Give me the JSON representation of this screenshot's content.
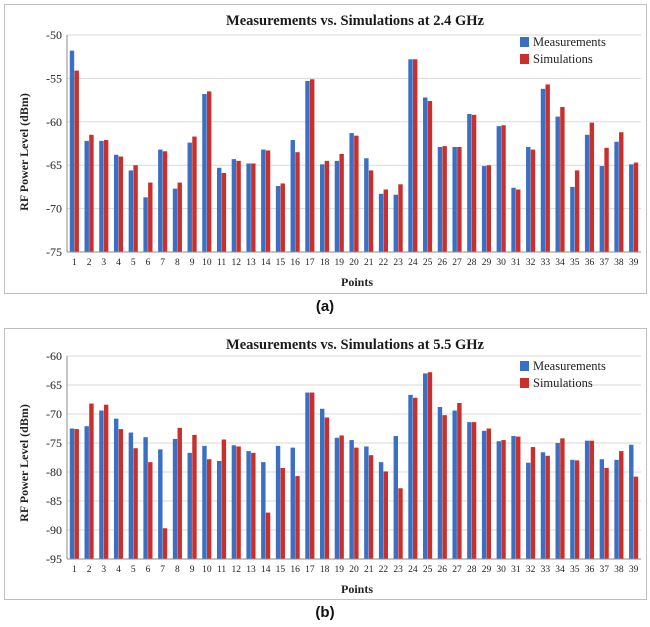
{
  "captions": {
    "a": "(a)",
    "b": "(b)"
  },
  "colors": {
    "measurements": "#3a6fc4",
    "simulations": "#c9302c",
    "grid": "#d9d9d9",
    "axis": "#8c8c8c"
  },
  "chart_data": [
    {
      "type": "bar",
      "title": "Measurements vs. Simulations at 2.4 GHz",
      "xlabel": "Points",
      "ylabel": "RF Power Level (dBm)",
      "ylim": [
        -75,
        -50
      ],
      "yticks": [
        -75,
        -70,
        -65,
        -60,
        -55,
        -50
      ],
      "grid": true,
      "legend": "top-right",
      "categories": [
        "1",
        "2",
        "3",
        "4",
        "5",
        "6",
        "7",
        "8",
        "9",
        "10",
        "11",
        "12",
        "13",
        "14",
        "15",
        "16",
        "17",
        "18",
        "19",
        "20",
        "21",
        "22",
        "23",
        "24",
        "25",
        "26",
        "27",
        "28",
        "29",
        "30",
        "31",
        "32",
        "33",
        "34",
        "35",
        "36",
        "37",
        "38",
        "39"
      ],
      "series": [
        {
          "name": "Measurements",
          "values": [
            -51.8,
            -62.2,
            -62.2,
            -63.8,
            -65.6,
            -68.7,
            -63.2,
            -67.7,
            -62.4,
            -56.8,
            -65.3,
            -64.3,
            -64.8,
            -63.2,
            -67.4,
            -62.1,
            -55.3,
            -64.9,
            -64.5,
            -61.3,
            -64.2,
            -68.3,
            -68.4,
            -52.8,
            -57.2,
            -62.9,
            -62.9,
            -59.1,
            -65.1,
            -60.5,
            -67.6,
            -62.9,
            -56.2,
            -59.4,
            -67.5,
            -61.5,
            -65.1,
            -62.3,
            -64.9
          ]
        },
        {
          "name": "Simulations",
          "values": [
            -54.1,
            -61.5,
            -62.1,
            -64.0,
            -65.0,
            -67.0,
            -63.4,
            -67.0,
            -61.7,
            -56.5,
            -65.9,
            -64.5,
            -64.8,
            -63.3,
            -67.1,
            -63.5,
            -55.1,
            -64.5,
            -63.7,
            -61.6,
            -65.6,
            -67.8,
            -67.2,
            -52.8,
            -57.6,
            -62.8,
            -62.9,
            -59.2,
            -65.0,
            -60.4,
            -67.8,
            -63.2,
            -55.7,
            -58.3,
            -65.6,
            -60.1,
            -63.0,
            -61.2,
            -64.7
          ]
        }
      ]
    },
    {
      "type": "bar",
      "title": "Measurements vs. Simulations at 5.5 GHz",
      "xlabel": "Points",
      "ylabel": "RF Power Level (dBm)",
      "ylim": [
        -95,
        -60
      ],
      "yticks": [
        -95,
        -90,
        -85,
        -80,
        -75,
        -70,
        -65,
        -60
      ],
      "grid": true,
      "legend": "top-right",
      "categories": [
        "1",
        "2",
        "3",
        "4",
        "5",
        "6",
        "7",
        "8",
        "9",
        "10",
        "11",
        "12",
        "13",
        "14",
        "15",
        "16",
        "17",
        "18",
        "19",
        "20",
        "21",
        "22",
        "23",
        "24",
        "25",
        "26",
        "27",
        "28",
        "29",
        "30",
        "31",
        "32",
        "33",
        "34",
        "35",
        "36",
        "37",
        "38",
        "39"
      ],
      "series": [
        {
          "name": "Measurements",
          "values": [
            -72.5,
            -72.1,
            -69.4,
            -70.8,
            -73.2,
            -74.0,
            -76.1,
            -74.3,
            -76.7,
            -75.5,
            -78.1,
            -75.4,
            -76.4,
            -78.3,
            -75.5,
            -75.8,
            -66.3,
            -69.1,
            -74.1,
            -74.5,
            -75.6,
            -78.3,
            -73.8,
            -66.7,
            -63.0,
            -68.8,
            -69.4,
            -71.4,
            -72.9,
            -74.7,
            -73.8,
            -78.4,
            -76.6,
            -75.0,
            -77.9,
            -74.6,
            -77.8,
            -77.9,
            -75.3
          ]
        },
        {
          "name": "Simulations",
          "values": [
            -72.6,
            -68.2,
            -68.4,
            -72.6,
            -75.9,
            -78.3,
            -89.7,
            -72.4,
            -73.6,
            -77.8,
            -74.4,
            -75.6,
            -76.7,
            -87.0,
            -79.3,
            -80.7,
            -66.3,
            -70.6,
            -73.7,
            -75.8,
            -77.1,
            -79.9,
            -82.8,
            -67.2,
            -62.8,
            -70.2,
            -68.1,
            -71.4,
            -72.5,
            -74.5,
            -73.9,
            -75.7,
            -77.2,
            -74.2,
            -78.0,
            -74.6,
            -79.3,
            -76.4,
            -80.8
          ]
        }
      ]
    }
  ]
}
